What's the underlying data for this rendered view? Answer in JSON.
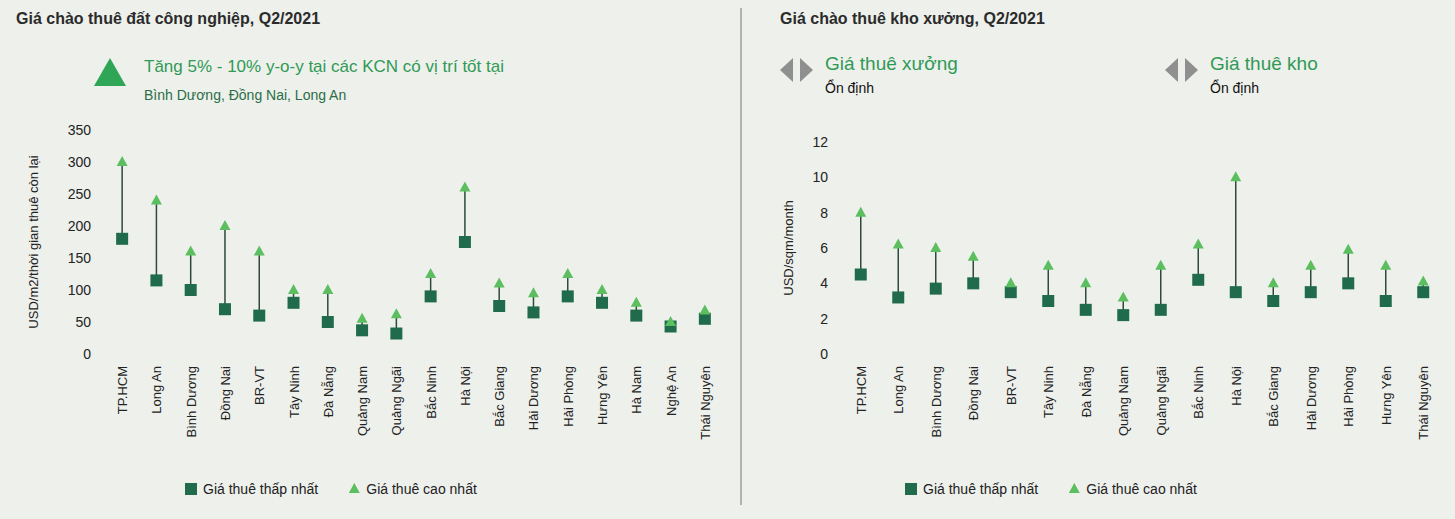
{
  "chart_data": [
    {
      "type": "range",
      "title": "Giá chào thuê đất công nghiệp, Q2/2021",
      "annotation": [
        "Tăng 5% - 10% y-o-y tại các KCN có vị trí tốt tại",
        "Bình Dương, Đồng Nai, Long An"
      ],
      "y_label": "USD/m2/thời gian thuê còn lại",
      "categories": [
        "TP.HCM",
        "Long An",
        "Bình Dương",
        "Đồng Nai",
        "BR-VT",
        "Tây Ninh",
        "Đà Nẵng",
        "Quảng Nam",
        "Quảng Ngãi",
        "Bắc Ninh",
        "Hà Nội",
        "Bắc Giang",
        "Hải Dương",
        "Hải Phòng",
        "Hưng Yên",
        "Hà Nam",
        "Nghệ An",
        "Thái Nguyên"
      ],
      "series": [
        {
          "name": "Giá thuê thấp nhất",
          "color": "#1f6b4b",
          "marker": "square",
          "values": [
            180,
            115,
            100,
            70,
            60,
            80,
            50,
            37,
            32,
            90,
            175,
            75,
            65,
            90,
            80,
            60,
            43,
            55
          ]
        },
        {
          "name": "Giá thuê cao nhất",
          "color": "#5bbf5f",
          "marker": "triangle",
          "values": [
            300,
            240,
            160,
            200,
            160,
            100,
            100,
            55,
            62,
            125,
            260,
            110,
            95,
            125,
            100,
            80,
            50,
            68
          ]
        }
      ],
      "ylim": [
        0,
        350
      ],
      "yticks": [
        0,
        50,
        100,
        150,
        200,
        250,
        300,
        350
      ],
      "grid": false,
      "legend": "bottom"
    },
    {
      "type": "range",
      "title": "Giá chào thuê kho xưởng, Q2/2021",
      "annotations": [
        {
          "title": "Giá thuê xưởng",
          "text": "Ổn định"
        },
        {
          "title": "Giá thuê kho",
          "text": "Ổn định"
        }
      ],
      "y_label": "USD/sqm/month",
      "categories": [
        "TP.HCM",
        "Long An",
        "Bình Dương",
        "Đồng Nai",
        "BR-VT",
        "Tây Ninh",
        "Đà Nẵng",
        "Quảng Nam",
        "Quảng Ngãi",
        "Bắc Ninh",
        "Hà Nội",
        "Bắc Giang",
        "Hải Dương",
        "Hải Phòng",
        "Hưng Yên",
        "Thái Nguyên"
      ],
      "series": [
        {
          "name": "Giá thuê thấp nhất",
          "color": "#1f6b4b",
          "marker": "square",
          "values": [
            4.5,
            3.2,
            3.7,
            4.0,
            3.5,
            3.0,
            2.5,
            2.2,
            2.5,
            4.2,
            3.5,
            3.0,
            3.5,
            4.0,
            3.0,
            3.5
          ]
        },
        {
          "name": "Giá thuê cao nhất",
          "color": "#5bbf5f",
          "marker": "triangle",
          "values": [
            8,
            6.2,
            6,
            5.5,
            4,
            5,
            4,
            3.2,
            5,
            6.2,
            10,
            4,
            5,
            5.9,
            5,
            4.1
          ]
        }
      ],
      "ylim": [
        0,
        12
      ],
      "yticks": [
        0,
        2,
        4,
        6,
        8,
        10,
        12
      ],
      "grid": false,
      "legend": "bottom"
    }
  ]
}
